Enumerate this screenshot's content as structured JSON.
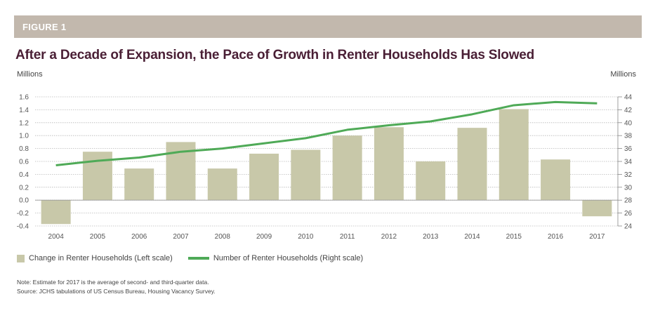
{
  "figure_label": "FIGURE 1",
  "colors": {
    "banner": "#c2b8ad",
    "title": "#4a1f35",
    "bar": "#c8c8a9",
    "line": "#4faa57"
  },
  "chart_data": {
    "type": "bar+line",
    "title": "After a Decade of Expansion, the Pace of Growth in Renter Households Has Slowed",
    "left_axis_label": "Millions",
    "right_axis_label": "Millions",
    "categories": [
      "2004",
      "2005",
      "2006",
      "2007",
      "2008",
      "2009",
      "2010",
      "2011",
      "2012",
      "2013",
      "2014",
      "2015",
      "2016",
      "2017"
    ],
    "left_ylim": [
      -0.4,
      1.6
    ],
    "left_ticks": [
      "-0.4",
      "-0.2",
      "0.0",
      "0.2",
      "0.4",
      "0.6",
      "0.8",
      "1.0",
      "1.2",
      "1.4",
      "1.6"
    ],
    "right_ylim": [
      24,
      44
    ],
    "right_ticks": [
      "24",
      "26",
      "28",
      "30",
      "32",
      "34",
      "36",
      "38",
      "40",
      "42",
      "44"
    ],
    "series": [
      {
        "name": "Change in Renter Households (Left scale)",
        "type": "bar",
        "axis": "left",
        "values": [
          -0.37,
          0.75,
          0.49,
          0.9,
          0.49,
          0.72,
          0.78,
          1.0,
          1.13,
          0.6,
          1.12,
          1.41,
          0.63,
          -0.25
        ]
      },
      {
        "name": "Number of Renter Households (Right scale)",
        "type": "line",
        "axis": "right",
        "values": [
          33.4,
          34.1,
          34.6,
          35.5,
          36.0,
          36.8,
          37.6,
          38.9,
          39.6,
          40.2,
          41.3,
          42.7,
          43.2,
          43.0
        ]
      }
    ],
    "grid": true
  },
  "notes": {
    "note": "Note: Estimate for 2017 is the average of second- and third-quarter data.",
    "source": "Source: JCHS tabulations of US Census Bureau, Housing Vacancy Survey."
  }
}
